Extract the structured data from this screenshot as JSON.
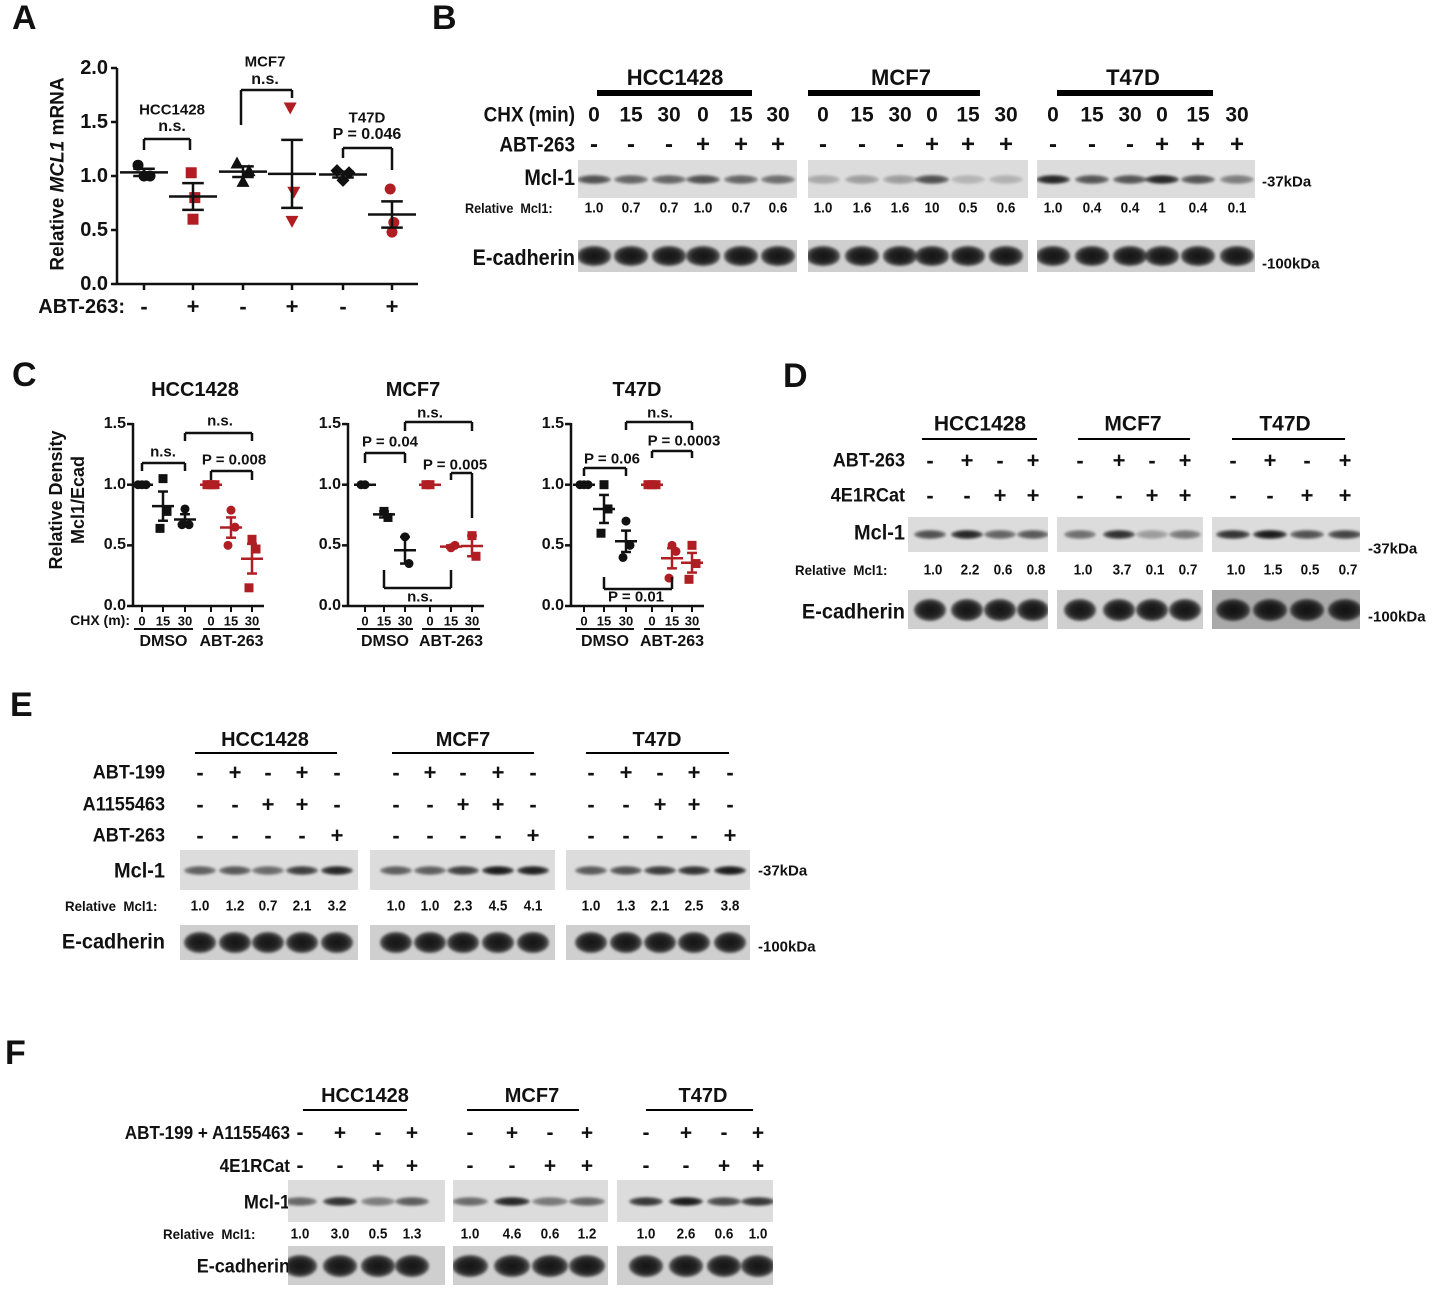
{
  "colors": {
    "dmso": "#111111",
    "abt263": "#b01e23"
  },
  "A": {
    "letter": "A",
    "y_axis": {
      "label_prefix": "Relative ",
      "label_gene": "MCL1",
      "label_suffix": " mRNA",
      "ticks": [
        "0.0",
        "0.5",
        "1.0",
        "1.5",
        "2.0"
      ]
    },
    "x_row": {
      "label": "ABT-263:",
      "signs": [
        "-",
        "+",
        "-",
        "+",
        "-",
        "+"
      ]
    },
    "groups": [
      {
        "cell_line": "HCC1428",
        "stat": "n.s."
      },
      {
        "cell_line": "MCF7",
        "stat": "n.s."
      },
      {
        "cell_line": "T47D",
        "stat": "P = 0.046"
      }
    ]
  },
  "B": {
    "letter": "B",
    "cell_lines": [
      "HCC1428",
      "MCF7",
      "T47D"
    ],
    "rows": [
      {
        "label": "CHX (min)",
        "values": [
          [
            "0",
            "15",
            "30",
            "0",
            "15",
            "30"
          ],
          [
            "0",
            "15",
            "30",
            "0",
            "15",
            "30"
          ],
          [
            "0",
            "15",
            "30",
            "0",
            "15",
            "30"
          ]
        ]
      },
      {
        "label": "ABT-263",
        "values": [
          [
            "-",
            "-",
            "-",
            "+",
            "+",
            "+"
          ],
          [
            "-",
            "-",
            "-",
            "+",
            "+",
            "+"
          ],
          [
            "-",
            "-",
            "-",
            "+",
            "+",
            "+"
          ]
        ]
      }
    ],
    "blots": [
      {
        "label": "Mcl-1",
        "marker": "-37kDa"
      },
      {
        "label": "E-cadherin",
        "marker": "-100kDa"
      }
    ],
    "relative": {
      "label": "Relative  Mcl1:",
      "values": [
        [
          "1.0",
          "0.7",
          "0.7",
          "1.0",
          "0.7",
          "0.6"
        ],
        [
          "1.0",
          "1.6",
          "1.6",
          "10",
          "0.5",
          "0.6"
        ],
        [
          "1.0",
          "0.4",
          "0.4",
          "1",
          "0.4",
          "0.1"
        ]
      ]
    }
  },
  "C": {
    "letter": "C",
    "ylabel_line1": "Relative Density",
    "ylabel_line2": "Mcl1/Ecad",
    "x_row_label": "CHX (m):",
    "plots": [
      {
        "title": "HCC1428",
        "ticks": [
          "0.0",
          "0.5",
          "1.0",
          "1.5"
        ],
        "times": [
          "0",
          "15",
          "30",
          "0",
          "15",
          "30"
        ],
        "groups": [
          "DMSO",
          "ABT-263"
        ],
        "stats": [
          "n.s.",
          "n.s.",
          "P = 0.008"
        ]
      },
      {
        "title": "MCF7",
        "ticks": [
          "0.0",
          "0.5",
          "1.0",
          "1.5"
        ],
        "times": [
          "0",
          "15",
          "30",
          "0",
          "15",
          "30"
        ],
        "groups": [
          "DMSO",
          "ABT-263"
        ],
        "stats": [
          "P = 0.04",
          "n.s.",
          "P = 0.005",
          "n.s."
        ]
      },
      {
        "title": "T47D",
        "ticks": [
          "0.0",
          "0.5",
          "1.0",
          "1.5"
        ],
        "times": [
          "0",
          "15",
          "30",
          "0",
          "15",
          "30"
        ],
        "groups": [
          "DMSO",
          "ABT-263"
        ],
        "stats": [
          "P = 0.06",
          "n.s.",
          "P = 0.0003",
          "P = 0.01"
        ]
      }
    ]
  },
  "D": {
    "letter": "D",
    "cell_lines": [
      "HCC1428",
      "MCF7",
      "T47D"
    ],
    "rows": [
      {
        "label": "ABT-263",
        "values": [
          [
            "-",
            "+",
            "-",
            "+"
          ],
          [
            "-",
            "+",
            "-",
            "+"
          ],
          [
            "-",
            "+",
            "-",
            "+"
          ]
        ]
      },
      {
        "label": "4E1RCat",
        "values": [
          [
            "-",
            "-",
            "+",
            "+"
          ],
          [
            "-",
            "-",
            "+",
            "+"
          ],
          [
            "-",
            "-",
            "+",
            "+"
          ]
        ]
      }
    ],
    "blots": [
      {
        "label": "Mcl-1",
        "marker": "-37kDa"
      },
      {
        "label": "E-cadherin",
        "marker": "-100kDa"
      }
    ],
    "relative": {
      "label": "Relative  Mcl1:",
      "values": [
        [
          "1.0",
          "2.2",
          "0.6",
          "0.8"
        ],
        [
          "1.0",
          "3.7",
          "0.1",
          "0.7"
        ],
        [
          "1.0",
          "1.5",
          "0.5",
          "0.7"
        ]
      ]
    }
  },
  "E": {
    "letter": "E",
    "cell_lines": [
      "HCC1428",
      "MCF7",
      "T47D"
    ],
    "rows": [
      {
        "label": "ABT-199",
        "values": [
          [
            "-",
            "+",
            "-",
            "+",
            "-"
          ],
          [
            "-",
            "+",
            "-",
            "+",
            "-"
          ],
          [
            "-",
            "+",
            "-",
            "+",
            "-"
          ]
        ]
      },
      {
        "label": "A1155463",
        "values": [
          [
            "-",
            "-",
            "+",
            "+",
            "-"
          ],
          [
            "-",
            "-",
            "+",
            "+",
            "-"
          ],
          [
            "-",
            "-",
            "+",
            "+",
            "-"
          ]
        ]
      },
      {
        "label": "ABT-263",
        "values": [
          [
            "-",
            "-",
            "-",
            "-",
            "+"
          ],
          [
            "-",
            "-",
            "-",
            "-",
            "+"
          ],
          [
            "-",
            "-",
            "-",
            "-",
            "+"
          ]
        ]
      }
    ],
    "blots": [
      {
        "label": "Mcl-1",
        "marker": "-37kDa"
      },
      {
        "label": "E-cadherin",
        "marker": "-100kDa"
      }
    ],
    "relative": {
      "label": "Relative  Mcl1:",
      "values": [
        [
          "1.0",
          "1.2",
          "0.7",
          "2.1",
          "3.2"
        ],
        [
          "1.0",
          "1.0",
          "2.3",
          "4.5",
          "4.1"
        ],
        [
          "1.0",
          "1.3",
          "2.1",
          "2.5",
          "3.8"
        ]
      ]
    }
  },
  "F": {
    "letter": "F",
    "cell_lines": [
      "HCC1428",
      "MCF7",
      "T47D"
    ],
    "rows": [
      {
        "label": "ABT-199 + A1155463",
        "values": [
          [
            "-",
            "+",
            "-",
            "+"
          ],
          [
            "-",
            "+",
            "-",
            "+"
          ],
          [
            "-",
            "+",
            "-",
            "+"
          ]
        ]
      },
      {
        "label": "4E1RCat",
        "values": [
          [
            "-",
            "-",
            "+",
            "+"
          ],
          [
            "-",
            "-",
            "+",
            "+"
          ],
          [
            "-",
            "-",
            "+",
            "+"
          ]
        ]
      }
    ],
    "blots": [
      {
        "label": "Mcl-1",
        "marker": ""
      },
      {
        "label": "E-cadherin",
        "marker": ""
      }
    ],
    "relative": {
      "label": "Relative  Mcl1:",
      "values": [
        [
          "1.0",
          "3.0",
          "0.5",
          "1.3"
        ],
        [
          "1.0",
          "4.6",
          "0.6",
          "1.2"
        ],
        [
          "1.0",
          "2.6",
          "0.6",
          "1.0"
        ]
      ]
    }
  },
  "chart_data": [
    {
      "type": "scatter",
      "panel": "A",
      "ylabel": "Relative MCL1 mRNA",
      "ylim": [
        0,
        2
      ],
      "categories": [
        "HCC1428 -",
        "HCC1428 +",
        "MCF7 -",
        "MCF7 +",
        "T47D -",
        "T47D +"
      ],
      "markers": [
        "circle",
        "square",
        "triangle",
        "triangle-down",
        "diamond",
        "circle"
      ],
      "points": [
        [
          1.1,
          1.0,
          1.0
        ],
        [
          1.03,
          0.8,
          0.6
        ],
        [
          1.12,
          1.05,
          0.95
        ],
        [
          1.63,
          0.85,
          0.58
        ],
        [
          1.05,
          1.03,
          0.96
        ],
        [
          0.88,
          0.57,
          0.48
        ]
      ]
    },
    {
      "type": "scatter",
      "panel": "C",
      "title": "HCC1428",
      "ylabel": "Relative Density Mcl1/Ecad",
      "ylim": [
        0,
        1.5
      ],
      "categories": [
        "DMSO 0",
        "DMSO 15",
        "DMSO 30",
        "ABT-263 0",
        "ABT-263 15",
        "ABT-263 30"
      ],
      "markers": [
        "circle",
        "square",
        "circle",
        "square",
        "circle",
        "square"
      ],
      "points": [
        [
          1,
          1,
          1
        ],
        [
          1.05,
          0.78,
          0.64
        ],
        [
          0.8,
          0.67,
          0.67
        ],
        [
          1,
          1,
          1
        ],
        [
          0.79,
          0.65,
          0.5
        ],
        [
          0.55,
          0.47,
          0.15
        ]
      ]
    },
    {
      "type": "scatter",
      "panel": "C",
      "title": "MCF7",
      "ylabel": "Relative Density Mcl1/Ecad",
      "ylim": [
        0,
        1.5
      ],
      "categories": [
        "DMSO 0",
        "DMSO 15",
        "DMSO 30",
        "ABT-263 0",
        "ABT-263 15",
        "ABT-263 30"
      ],
      "markers": [
        "circle",
        "square",
        "circle",
        "square",
        "circle",
        "square"
      ],
      "points": [
        [
          1,
          1
        ],
        [
          0.78,
          0.73
        ],
        [
          0.57,
          0.35
        ],
        [
          1,
          1
        ],
        [
          0.48,
          0.5
        ],
        [
          0.58,
          0.41
        ]
      ]
    },
    {
      "type": "scatter",
      "panel": "C",
      "title": "T47D",
      "ylabel": "Relative Density Mcl1/Ecad",
      "ylim": [
        0,
        1.5
      ],
      "categories": [
        "DMSO 0",
        "DMSO 15",
        "DMSO 30",
        "ABT-263 0",
        "ABT-263 15",
        "ABT-263 30"
      ],
      "markers": [
        "circle",
        "square",
        "circle",
        "square",
        "circle",
        "square"
      ],
      "points": [
        [
          1,
          1,
          1
        ],
        [
          1.0,
          0.8,
          0.6
        ],
        [
          0.7,
          0.5,
          0.4
        ],
        [
          1,
          1,
          1
        ],
        [
          0.5,
          0.45,
          0.23
        ],
        [
          0.5,
          0.35,
          0.22
        ]
      ]
    }
  ]
}
